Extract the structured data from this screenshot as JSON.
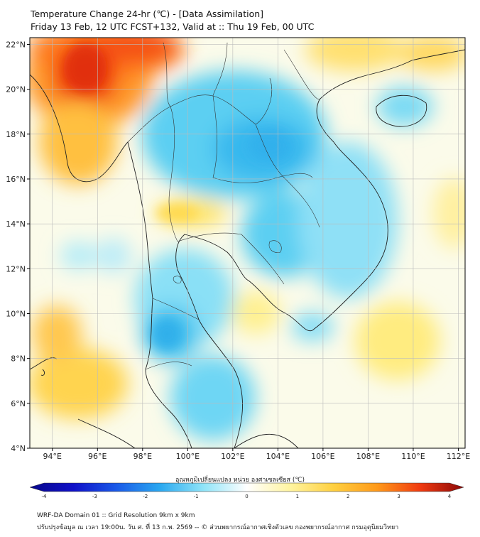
{
  "header": {
    "title_line1": "Temperature Change 24-hr (℃) - [Data Assimilation]",
    "title_line2": "Friday 13 Feb, 12 UTC FCST+132, Valid at :: Thu 19 Feb, 00 UTC"
  },
  "map": {
    "lat_labels": [
      "22°N",
      "20°N",
      "18°N",
      "16°N",
      "14°N",
      "12°N",
      "10°N",
      "8°N",
      "6°N",
      "4°N"
    ],
    "lon_labels": [
      "94°E",
      "96°E",
      "98°E",
      "100°E",
      "102°E",
      "104°E",
      "106°E",
      "108°E",
      "110°E",
      "112°E"
    ],
    "lat_range": [
      4,
      22.3
    ],
    "lon_range": [
      93,
      112.3
    ]
  },
  "colorbar": {
    "label": "อุณหภูมิเปลี่ยนแปลง หน่วย องศาเซลเซียส (℃)",
    "ticks": [
      "-4",
      "-3",
      "-2",
      "-1",
      "0",
      "1",
      "2",
      "3",
      "4"
    ],
    "range": [
      -4,
      4
    ],
    "colors": [
      "#08088a",
      "#1010c8",
      "#1a5ae8",
      "#2aa8f0",
      "#8fe4f8",
      "#ffffff",
      "#fff4a0",
      "#ffd040",
      "#ff9a1a",
      "#f03a10",
      "#8a0808"
    ]
  },
  "footer": {
    "line1": "WRF-DA Domain 01 :: Grid Resolution 9km x 9km",
    "line2": "ปรับปรุงข้อมูล ณ เวลา 19:00น. วัน ศ. ที่ 13 ก.พ. 2569 -- © ส่วนพยากรณ์อากาศเชิงตัวเลข กองพยากรณ์อากาศ กรมอุตุนิยมวิทยา"
  }
}
